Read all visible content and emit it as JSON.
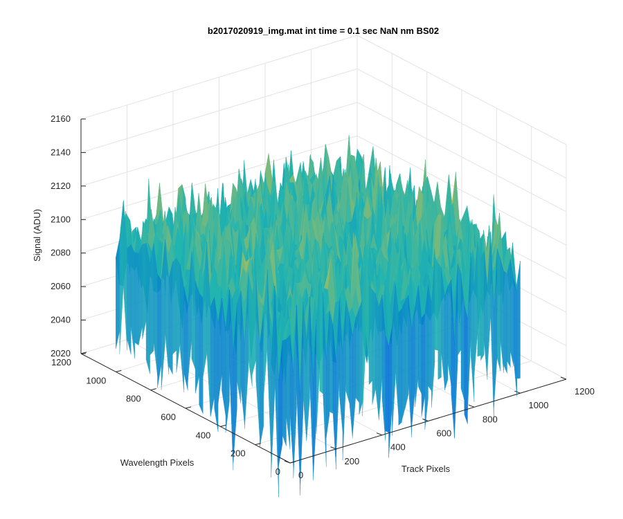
{
  "chart_data": {
    "type": "surface",
    "title": "b2017020919_img.mat int time = 0.1 sec  NaN nm BS02",
    "xlabel": "Track Pixels",
    "ylabel": "Wavelength Pixels",
    "zlabel": "Signal (ADU)",
    "xlim": [
      0,
      1200
    ],
    "ylim": [
      0,
      1200
    ],
    "zlim": [
      2020,
      2160
    ],
    "x_ticks": [
      "0",
      "200",
      "400",
      "600",
      "800",
      "1000",
      "1200"
    ],
    "y_ticks": [
      "0",
      "200",
      "400",
      "600",
      "800",
      "1000",
      "1200"
    ],
    "z_ticks": [
      "2020",
      "2040",
      "2060",
      "2080",
      "2100",
      "2120",
      "2140",
      "2160"
    ],
    "x_extent": [
      0,
      1000
    ],
    "y_extent": [
      0,
      1000
    ],
    "z_mean": 2095,
    "z_min_approx": 2025,
    "z_max_approx": 2150,
    "grid": true,
    "colormap": "parula",
    "colors": {
      "low": "#0072d8",
      "mid": "#21b4b0",
      "high": "#f5c230"
    }
  }
}
